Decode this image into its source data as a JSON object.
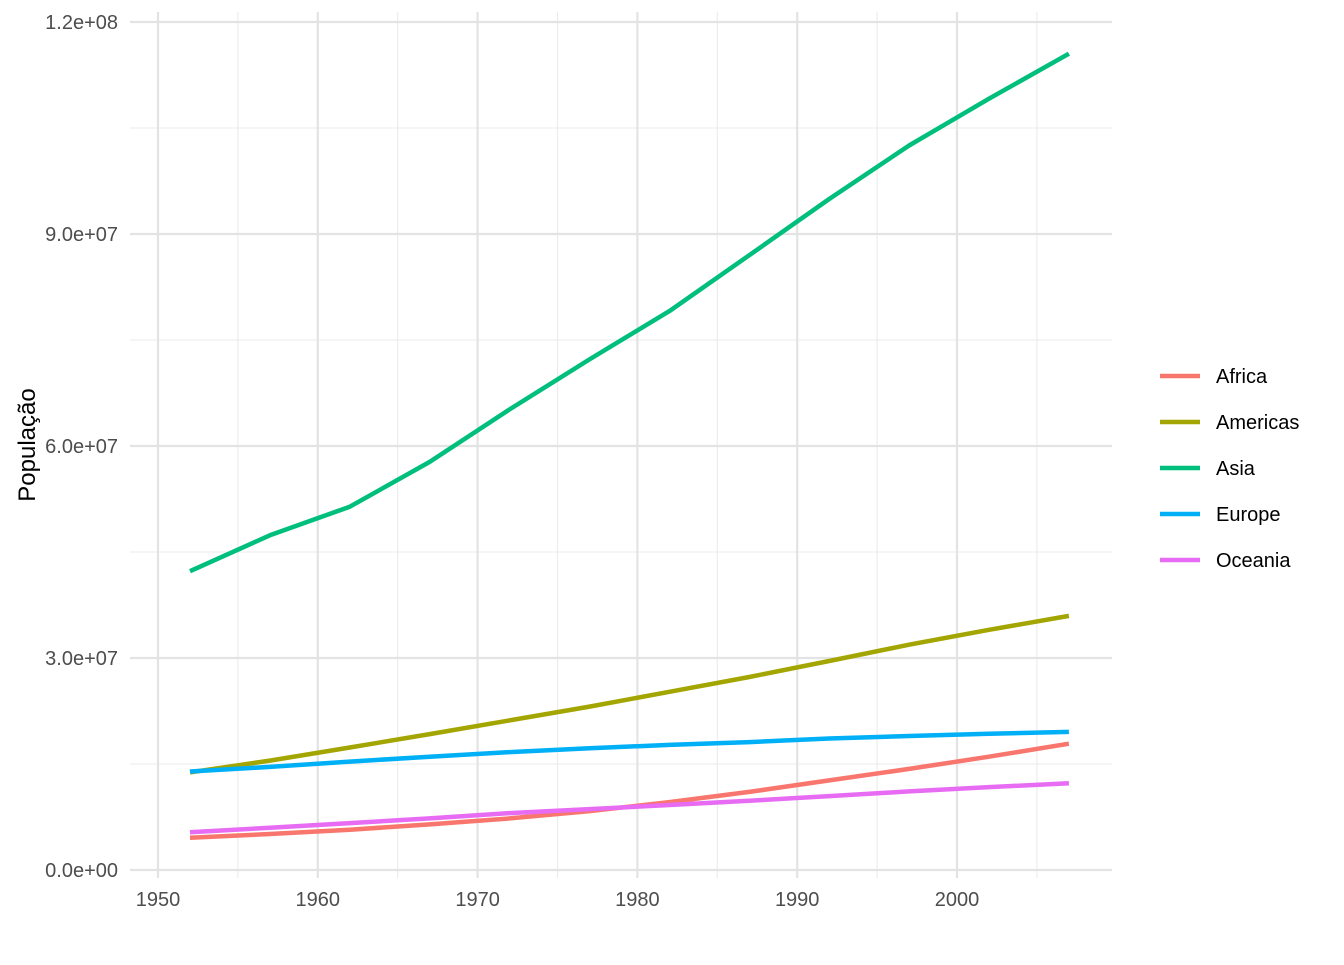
{
  "chart_data": {
    "type": "line",
    "title": "",
    "xlabel": "",
    "ylabel": "População",
    "xlim": [
      1950,
      2009
    ],
    "ylim": [
      0,
      120000000
    ],
    "x_ticks": [
      1950,
      1960,
      1970,
      1980,
      1990,
      2000
    ],
    "x_tick_labels": [
      "1950",
      "1960",
      "1970",
      "1980",
      "1990",
      "2000"
    ],
    "x_minor_ticks": [
      1955,
      1965,
      1975,
      1985,
      1995,
      2005
    ],
    "y_ticks": [
      0,
      30000000,
      60000000,
      90000000,
      120000000
    ],
    "y_tick_labels": [
      "0.0e+00",
      "3.0e+07",
      "6.0e+07",
      "9.0e+07",
      "1.2e+08"
    ],
    "y_minor_ticks": [
      15000000,
      45000000,
      75000000,
      105000000
    ],
    "grid": true,
    "legend_position": "right",
    "x": [
      1952,
      1957,
      1962,
      1967,
      1972,
      1977,
      1982,
      1987,
      1992,
      1997,
      2002,
      2007
    ],
    "series": [
      {
        "name": "Africa",
        "color": "#F8766D",
        "values": [
          4570010,
          5093033,
          5702247,
          6447875,
          7305376,
          8328097,
          9602857,
          11054502,
          12674645,
          14304480,
          16033152,
          17875763
        ]
      },
      {
        "name": "Americas",
        "color": "#A3A500",
        "values": [
          13806098,
          15478157,
          17330810,
          19229865,
          21175368,
          23122708,
          25211637,
          27310159,
          29570964,
          31876016,
          33990910,
          35954847
        ]
      },
      {
        "name": "Asia",
        "color": "#00BF7D",
        "values": [
          42283556,
          47356988,
          51404763,
          57747361,
          65180977,
          72257987,
          79095018,
          87006690,
          94948248,
          102523803,
          109145521,
          115513752
        ]
      },
      {
        "name": "Europe",
        "color": "#00B0F6",
        "values": [
          13937362,
          14596345,
          15345172,
          16039299,
          16687835,
          17238818,
          17708897,
          18103139,
          18604760,
          18964805,
          19274129,
          19536618
        ]
      },
      {
        "name": "Oceania",
        "color": "#E76BF3",
        "values": [
          5343003,
          5970988,
          6641759,
          7300207,
          8053050,
          8619500,
          9197425,
          9787208,
          10459826,
          11120715,
          11727415,
          12274974
        ]
      }
    ]
  }
}
